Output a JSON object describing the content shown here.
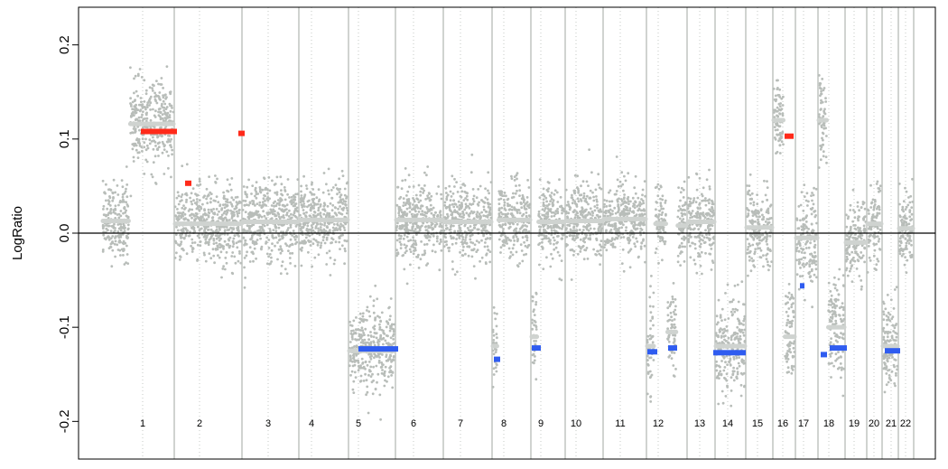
{
  "chart_data": {
    "type": "scatter",
    "title": "",
    "xlabel": "",
    "ylabel": "LogRatio",
    "ylim": [
      -0.24,
      0.24
    ],
    "y_ticks": [
      -0.2,
      -0.1,
      0.0,
      0.1,
      0.2
    ],
    "y_tick_labels": [
      "-0.2",
      "-0.1",
      "0.0",
      "0.1",
      "0.2"
    ],
    "baseline": 0.0,
    "grid": false,
    "colors": {
      "points": "#b8bdb9",
      "smooth": "#cfd3d0",
      "gain": "#ff2a1a",
      "loss": "#2f5cf0",
      "chrom_line": "#c4c8c5"
    },
    "chromosomes": [
      {
        "label": "1",
        "segments": [
          {
            "from": 0.0,
            "to": 0.38,
            "mean": 0.013,
            "sd": 0.02
          },
          {
            "from": 0.38,
            "to": 1.0,
            "mean": 0.116,
            "sd": 0.022
          }
        ]
      },
      {
        "label": "2",
        "segments": [
          {
            "from": 0.0,
            "to": 1.0,
            "mean": 0.01,
            "sd": 0.02
          }
        ]
      },
      {
        "label": "3",
        "segments": [
          {
            "from": 0.0,
            "to": 1.0,
            "mean": 0.012,
            "sd": 0.021
          }
        ]
      },
      {
        "label": "4",
        "segments": [
          {
            "from": 0.0,
            "to": 1.0,
            "mean": 0.014,
            "sd": 0.02
          }
        ]
      },
      {
        "label": "5",
        "segments": [
          {
            "from": 0.0,
            "to": 1.0,
            "mean": -0.125,
            "sd": 0.022
          }
        ]
      },
      {
        "label": "6",
        "segments": [
          {
            "from": 0.0,
            "to": 1.0,
            "mean": 0.014,
            "sd": 0.02
          }
        ]
      },
      {
        "label": "7",
        "segments": [
          {
            "from": 0.0,
            "to": 1.0,
            "mean": 0.012,
            "sd": 0.02
          }
        ]
      },
      {
        "label": "8",
        "segments": [
          {
            "from": 0.0,
            "to": 0.15,
            "mean": -0.12,
            "sd": 0.02
          },
          {
            "from": 0.15,
            "to": 1.0,
            "mean": 0.014,
            "sd": 0.02
          }
        ]
      },
      {
        "label": "9",
        "segments": [
          {
            "from": 0.0,
            "to": 0.2,
            "mean": -0.11,
            "sd": 0.025
          },
          {
            "from": 0.2,
            "to": 1.0,
            "mean": 0.012,
            "sd": 0.02
          }
        ]
      },
      {
        "label": "10",
        "segments": [
          {
            "from": 0.0,
            "to": 1.0,
            "mean": 0.013,
            "sd": 0.02
          }
        ]
      },
      {
        "label": "11",
        "segments": [
          {
            "from": 0.0,
            "to": 1.0,
            "mean": 0.015,
            "sd": 0.02
          }
        ]
      },
      {
        "label": "12",
        "segments": [
          {
            "from": 0.0,
            "to": 0.2,
            "mean": -0.12,
            "sd": 0.025
          },
          {
            "from": 0.2,
            "to": 0.5,
            "mean": 0.01,
            "sd": 0.02
          },
          {
            "from": 0.5,
            "to": 0.75,
            "mean": -0.105,
            "sd": 0.02
          },
          {
            "from": 0.75,
            "to": 1.0,
            "mean": 0.008,
            "sd": 0.02
          }
        ]
      },
      {
        "label": "13",
        "segments": [
          {
            "from": 0.0,
            "to": 1.0,
            "mean": 0.012,
            "sd": 0.02
          }
        ]
      },
      {
        "label": "14",
        "segments": [
          {
            "from": 0.0,
            "to": 1.0,
            "mean": -0.12,
            "sd": 0.025
          }
        ]
      },
      {
        "label": "15",
        "segments": [
          {
            "from": 0.0,
            "to": 1.0,
            "mean": 0.006,
            "sd": 0.02
          }
        ]
      },
      {
        "label": "16",
        "segments": [
          {
            "from": 0.0,
            "to": 0.5,
            "mean": 0.12,
            "sd": 0.022
          },
          {
            "from": 0.5,
            "to": 1.0,
            "mean": -0.11,
            "sd": 0.025
          }
        ]
      },
      {
        "label": "17",
        "segments": [
          {
            "from": 0.0,
            "to": 1.0,
            "mean": -0.005,
            "sd": 0.025
          }
        ]
      },
      {
        "label": "18",
        "segments": [
          {
            "from": 0.0,
            "to": 0.35,
            "mean": 0.12,
            "sd": 0.025
          },
          {
            "from": 0.35,
            "to": 1.0,
            "mean": -0.1,
            "sd": 0.025
          }
        ]
      },
      {
        "label": "19",
        "segments": [
          {
            "from": 0.0,
            "to": 1.0,
            "mean": -0.01,
            "sd": 0.02
          }
        ]
      },
      {
        "label": "20",
        "segments": [
          {
            "from": 0.0,
            "to": 1.0,
            "mean": 0.01,
            "sd": 0.02
          }
        ]
      },
      {
        "label": "21",
        "segments": [
          {
            "from": 0.0,
            "to": 1.0,
            "mean": -0.12,
            "sd": 0.025
          }
        ]
      },
      {
        "label": "22",
        "segments": [
          {
            "from": 0.0,
            "to": 1.0,
            "mean": 0.005,
            "sd": 0.02
          }
        ]
      }
    ],
    "segment_calls": [
      {
        "chrom": "1",
        "type": "gain",
        "y": 0.108
      },
      {
        "chrom": "2",
        "type": "gain",
        "y": 0.053
      },
      {
        "chrom": "3",
        "type": "gain",
        "y": 0.106
      },
      {
        "chrom": "5",
        "type": "loss",
        "y": -0.123
      },
      {
        "chrom": "8",
        "type": "loss",
        "y": -0.134
      },
      {
        "chrom": "9",
        "type": "loss",
        "y": -0.122
      },
      {
        "chrom": "12",
        "type": "loss",
        "y": -0.126
      },
      {
        "chrom": "12",
        "type": "loss",
        "y": -0.122
      },
      {
        "chrom": "14",
        "type": "loss",
        "y": -0.127
      },
      {
        "chrom": "16",
        "type": "gain",
        "y": 0.103
      },
      {
        "chrom": "17",
        "type": "loss",
        "y": -0.056
      },
      {
        "chrom": "18",
        "type": "loss",
        "y": -0.129
      },
      {
        "chrom": "18",
        "type": "loss",
        "y": -0.122
      },
      {
        "chrom": "21",
        "type": "loss",
        "y": -0.125
      }
    ]
  }
}
